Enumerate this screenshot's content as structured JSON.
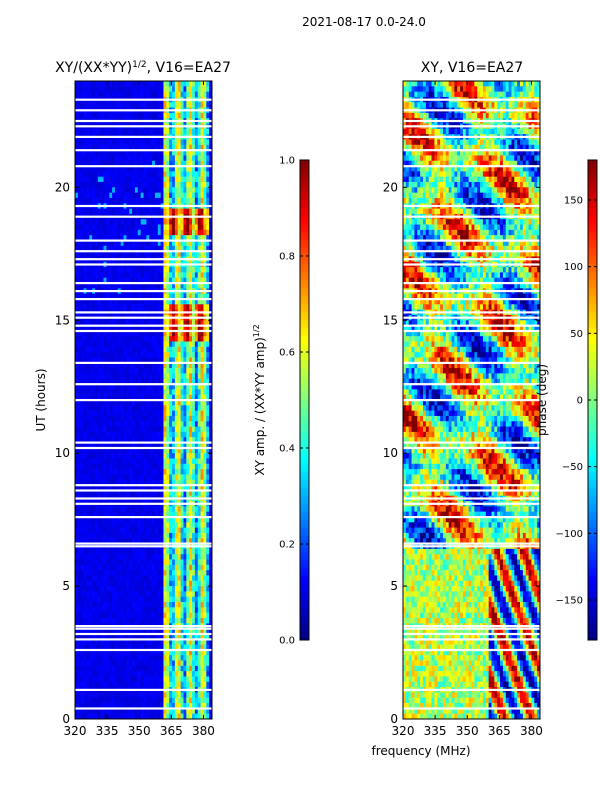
{
  "suptitle": "2021-08-17 0.0-24.0",
  "figure_xlabel": "frequency (MHz)",
  "colors": {
    "jet": [
      "#00007f",
      "#0000ff",
      "#007fff",
      "#00ffff",
      "#7fff7f",
      "#ffff00",
      "#ff7f00",
      "#ff0000",
      "#7f0000"
    ],
    "gap": "#ffffff"
  },
  "chart_data": [
    {
      "type": "heatmap",
      "title_prefix": "XY/(XX*YY)",
      "title_sup": "1/2",
      "title_suffix": ", V16=EA27",
      "ylabel": "UT (hours)",
      "xlabel": "",
      "xlim": [
        320,
        384
      ],
      "ylim": [
        0,
        24
      ],
      "xticks": [
        "320",
        "335",
        "350",
        "365",
        "380"
      ],
      "yticks": [
        "0",
        "5",
        "10",
        "15",
        "20"
      ],
      "colorbar": {
        "label_prefix": "XY amp. / (XX*YY amp)",
        "label_sup": "1/2",
        "vmin": 0,
        "vmax": 1,
        "ticks": [
          "0.0",
          "0.2",
          "0.4",
          "0.6",
          "0.8",
          "1.0"
        ]
      },
      "description": {
        "low_band_level": 0.08,
        "high_band_start_mhz": 361,
        "high_band_level": 0.45,
        "bright_hours": [
          [
            14.2,
            15.5
          ],
          [
            18.2,
            19.2
          ]
        ]
      }
    },
    {
      "type": "heatmap",
      "title": "XY, V16=EA27",
      "ylabel": "",
      "xlim": [
        320,
        384
      ],
      "ylim": [
        0,
        24
      ],
      "xticks": [
        "320",
        "335",
        "350",
        "365",
        "380"
      ],
      "yticks": [
        "0",
        "5",
        "10",
        "15",
        "20"
      ],
      "colorbar": {
        "label": "phase (deg)",
        "vmin": -180,
        "vmax": 180,
        "ticks": [
          "−150",
          "−100",
          "−50",
          "0",
          "50",
          "100",
          "150"
        ]
      }
    }
  ],
  "gap_hours": [
    0.4,
    1.1,
    2.6,
    3.0,
    3.2,
    3.4,
    3.5,
    6.5,
    6.6,
    7.6,
    8.1,
    8.3,
    8.6,
    8.8,
    10.2,
    10.4,
    12.0,
    12.6,
    13.4,
    14.6,
    14.8,
    15.1,
    15.3,
    15.8,
    16.1,
    16.4,
    17.1,
    17.3,
    17.6,
    18.0,
    18.9,
    19.3,
    20.8,
    21.4,
    21.9,
    22.3,
    22.5,
    22.9,
    23.3
  ]
}
